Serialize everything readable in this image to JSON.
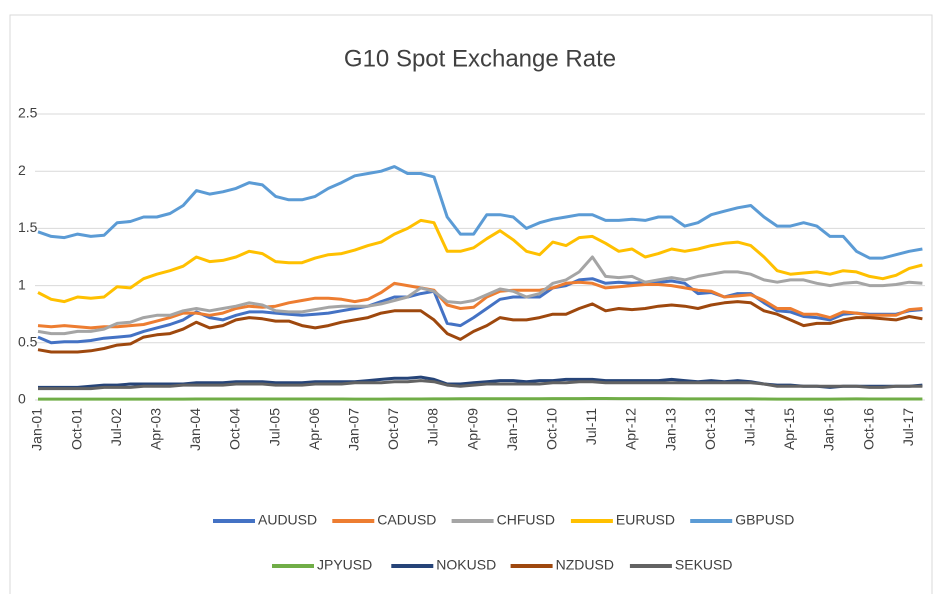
{
  "chart_data": {
    "type": "line",
    "title": "G10 Spot Exchange Rate",
    "categories": [
      "Jan-01",
      null,
      null,
      "Oct-01",
      null,
      null,
      "Jul-02",
      null,
      null,
      "Apr-03",
      null,
      null,
      "Jan-04",
      null,
      null,
      "Oct-04",
      null,
      null,
      "Jul-05",
      null,
      null,
      "Apr-06",
      null,
      null,
      "Jan-07",
      null,
      null,
      "Oct-07",
      null,
      null,
      "Jul-08",
      null,
      null,
      "Apr-09",
      null,
      null,
      "Jan-10",
      null,
      null,
      "Oct-10",
      null,
      null,
      "Jul-11",
      null,
      null,
      "Apr-12",
      null,
      null,
      "Jan-13",
      null,
      null,
      "Oct-13",
      null,
      null,
      "Jul-14",
      null,
      null,
      "Apr-15",
      null,
      null,
      "Jan-16",
      null,
      null,
      "Oct-16",
      null,
      null,
      "Jul-17",
      null
    ],
    "ylim": [
      0,
      2.5
    ],
    "yticks": [
      0,
      0.5,
      1,
      1.5,
      2,
      2.5
    ],
    "grid": true,
    "legend": "bottom",
    "series": [
      {
        "name": "AUDUSD",
        "color": "#4472c4",
        "values": [
          0.55,
          0.5,
          0.51,
          0.51,
          0.52,
          0.54,
          0.55,
          0.56,
          0.6,
          0.63,
          0.66,
          0.7,
          0.77,
          0.72,
          0.7,
          0.74,
          0.77,
          0.77,
          0.76,
          0.75,
          0.74,
          0.75,
          0.76,
          0.78,
          0.8,
          0.82,
          0.86,
          0.9,
          0.9,
          0.93,
          0.95,
          0.67,
          0.65,
          0.72,
          0.8,
          0.88,
          0.9,
          0.9,
          0.9,
          0.98,
          1.0,
          1.05,
          1.06,
          1.02,
          1.03,
          1.02,
          1.03,
          1.03,
          1.04,
          1.02,
          0.93,
          0.94,
          0.9,
          0.93,
          0.93,
          0.85,
          0.78,
          0.77,
          0.73,
          0.72,
          0.7,
          0.75,
          0.76,
          0.75,
          0.75,
          0.75,
          0.78,
          0.79
        ]
      },
      {
        "name": "CADUSD",
        "color": "#ed7d31",
        "values": [
          0.65,
          0.64,
          0.65,
          0.64,
          0.63,
          0.64,
          0.64,
          0.65,
          0.66,
          0.69,
          0.72,
          0.76,
          0.76,
          0.74,
          0.76,
          0.8,
          0.82,
          0.81,
          0.82,
          0.85,
          0.87,
          0.89,
          0.89,
          0.88,
          0.86,
          0.88,
          0.94,
          1.02,
          1.0,
          0.98,
          0.96,
          0.83,
          0.8,
          0.81,
          0.9,
          0.95,
          0.96,
          0.96,
          0.96,
          0.98,
          1.02,
          1.03,
          1.02,
          0.98,
          0.99,
          1.0,
          1.01,
          1.01,
          1.0,
          0.98,
          0.96,
          0.95,
          0.9,
          0.91,
          0.92,
          0.87,
          0.8,
          0.8,
          0.75,
          0.75,
          0.72,
          0.77,
          0.76,
          0.74,
          0.74,
          0.74,
          0.79,
          0.8
        ]
      },
      {
        "name": "CHFUSD",
        "color": "#a5a5a5",
        "values": [
          0.6,
          0.58,
          0.58,
          0.6,
          0.6,
          0.62,
          0.67,
          0.68,
          0.72,
          0.74,
          0.74,
          0.78,
          0.8,
          0.78,
          0.8,
          0.82,
          0.85,
          0.83,
          0.78,
          0.77,
          0.77,
          0.79,
          0.81,
          0.82,
          0.82,
          0.82,
          0.84,
          0.87,
          0.9,
          0.98,
          0.95,
          0.86,
          0.85,
          0.87,
          0.92,
          0.97,
          0.95,
          0.9,
          0.93,
          1.02,
          1.05,
          1.12,
          1.25,
          1.08,
          1.07,
          1.08,
          1.03,
          1.05,
          1.07,
          1.05,
          1.08,
          1.1,
          1.12,
          1.12,
          1.1,
          1.05,
          1.03,
          1.05,
          1.05,
          1.02,
          1.0,
          1.02,
          1.03,
          1.0,
          1.0,
          1.01,
          1.03,
          1.02
        ]
      },
      {
        "name": "EURUSD",
        "color": "#ffc000",
        "values": [
          0.94,
          0.88,
          0.86,
          0.9,
          0.89,
          0.9,
          0.99,
          0.98,
          1.06,
          1.1,
          1.13,
          1.17,
          1.25,
          1.21,
          1.22,
          1.25,
          1.3,
          1.28,
          1.21,
          1.2,
          1.2,
          1.24,
          1.27,
          1.28,
          1.31,
          1.35,
          1.38,
          1.45,
          1.5,
          1.57,
          1.55,
          1.3,
          1.3,
          1.33,
          1.41,
          1.48,
          1.4,
          1.3,
          1.27,
          1.38,
          1.35,
          1.42,
          1.43,
          1.37,
          1.3,
          1.32,
          1.25,
          1.28,
          1.32,
          1.3,
          1.32,
          1.35,
          1.37,
          1.38,
          1.35,
          1.25,
          1.13,
          1.1,
          1.11,
          1.12,
          1.1,
          1.13,
          1.12,
          1.08,
          1.06,
          1.09,
          1.15,
          1.18
        ]
      },
      {
        "name": "GBPUSD",
        "color": "#5b9bd5",
        "values": [
          1.47,
          1.43,
          1.42,
          1.45,
          1.43,
          1.44,
          1.55,
          1.56,
          1.6,
          1.6,
          1.63,
          1.7,
          1.83,
          1.8,
          1.82,
          1.85,
          1.9,
          1.88,
          1.78,
          1.75,
          1.75,
          1.78,
          1.85,
          1.9,
          1.96,
          1.98,
          2.0,
          2.04,
          1.98,
          1.98,
          1.95,
          1.6,
          1.45,
          1.45,
          1.62,
          1.62,
          1.6,
          1.5,
          1.55,
          1.58,
          1.6,
          1.62,
          1.62,
          1.57,
          1.57,
          1.58,
          1.57,
          1.6,
          1.6,
          1.52,
          1.55,
          1.62,
          1.65,
          1.68,
          1.7,
          1.6,
          1.52,
          1.52,
          1.55,
          1.52,
          1.43,
          1.43,
          1.3,
          1.24,
          1.24,
          1.27,
          1.3,
          1.32
        ]
      },
      {
        "name": "JPYUSD",
        "color": "#70ad47",
        "values": [
          0.008,
          0.008,
          0.008,
          0.008,
          0.008,
          0.008,
          0.008,
          0.008,
          0.008,
          0.008,
          0.008,
          0.008,
          0.009,
          0.009,
          0.009,
          0.009,
          0.009,
          0.009,
          0.009,
          0.009,
          0.009,
          0.009,
          0.009,
          0.009,
          0.008,
          0.008,
          0.008,
          0.009,
          0.009,
          0.009,
          0.01,
          0.01,
          0.011,
          0.011,
          0.011,
          0.011,
          0.011,
          0.011,
          0.011,
          0.012,
          0.012,
          0.012,
          0.013,
          0.013,
          0.012,
          0.012,
          0.012,
          0.012,
          0.011,
          0.01,
          0.01,
          0.01,
          0.01,
          0.01,
          0.01,
          0.009,
          0.008,
          0.008,
          0.008,
          0.008,
          0.008,
          0.009,
          0.01,
          0.009,
          0.009,
          0.009,
          0.009,
          0.009
        ]
      },
      {
        "name": "NOKUSD",
        "color": "#264478",
        "values": [
          0.11,
          0.11,
          0.11,
          0.11,
          0.12,
          0.13,
          0.13,
          0.14,
          0.14,
          0.14,
          0.14,
          0.14,
          0.15,
          0.15,
          0.15,
          0.16,
          0.16,
          0.16,
          0.15,
          0.15,
          0.15,
          0.16,
          0.16,
          0.16,
          0.16,
          0.17,
          0.18,
          0.19,
          0.19,
          0.2,
          0.18,
          0.14,
          0.14,
          0.15,
          0.16,
          0.17,
          0.17,
          0.16,
          0.17,
          0.17,
          0.18,
          0.18,
          0.18,
          0.17,
          0.17,
          0.17,
          0.17,
          0.17,
          0.18,
          0.17,
          0.16,
          0.17,
          0.16,
          0.17,
          0.16,
          0.14,
          0.13,
          0.13,
          0.12,
          0.12,
          0.11,
          0.12,
          0.12,
          0.12,
          0.12,
          0.12,
          0.12,
          0.13
        ]
      },
      {
        "name": "NZDUSD",
        "color": "#9e480e",
        "values": [
          0.44,
          0.42,
          0.42,
          0.42,
          0.43,
          0.45,
          0.48,
          0.49,
          0.55,
          0.57,
          0.58,
          0.62,
          0.68,
          0.63,
          0.65,
          0.7,
          0.72,
          0.71,
          0.69,
          0.69,
          0.65,
          0.63,
          0.65,
          0.68,
          0.7,
          0.72,
          0.76,
          0.78,
          0.78,
          0.78,
          0.7,
          0.58,
          0.53,
          0.6,
          0.65,
          0.72,
          0.7,
          0.7,
          0.72,
          0.75,
          0.75,
          0.8,
          0.84,
          0.78,
          0.8,
          0.79,
          0.8,
          0.82,
          0.83,
          0.82,
          0.8,
          0.83,
          0.85,
          0.86,
          0.85,
          0.78,
          0.75,
          0.7,
          0.65,
          0.67,
          0.67,
          0.7,
          0.72,
          0.72,
          0.71,
          0.7,
          0.73,
          0.71
        ]
      },
      {
        "name": "SEKUSD",
        "color": "#636363",
        "values": [
          0.1,
          0.1,
          0.1,
          0.1,
          0.1,
          0.11,
          0.11,
          0.11,
          0.12,
          0.12,
          0.12,
          0.13,
          0.13,
          0.13,
          0.13,
          0.14,
          0.14,
          0.14,
          0.13,
          0.13,
          0.13,
          0.14,
          0.14,
          0.14,
          0.15,
          0.15,
          0.15,
          0.16,
          0.16,
          0.17,
          0.16,
          0.13,
          0.12,
          0.13,
          0.14,
          0.14,
          0.14,
          0.14,
          0.14,
          0.15,
          0.15,
          0.16,
          0.16,
          0.15,
          0.15,
          0.15,
          0.15,
          0.15,
          0.15,
          0.15,
          0.15,
          0.15,
          0.15,
          0.15,
          0.15,
          0.14,
          0.12,
          0.12,
          0.12,
          0.12,
          0.12,
          0.12,
          0.12,
          0.11,
          0.11,
          0.12,
          0.12,
          0.12
        ]
      }
    ]
  }
}
